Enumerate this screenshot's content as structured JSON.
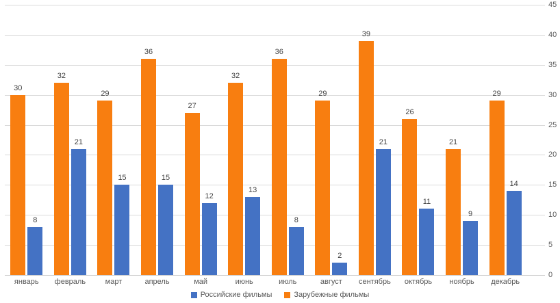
{
  "chart_data": {
    "type": "bar",
    "title": "",
    "categories": [
      "январь",
      "февраль",
      "март",
      "апрель",
      "май",
      "июнь",
      "июль",
      "август",
      "сентябрь",
      "октябрь",
      "ноябрь",
      "декабрь"
    ],
    "series": [
      {
        "name": "Российские фильмы",
        "color": "#4472C4",
        "values": [
          8,
          21,
          15,
          15,
          12,
          13,
          8,
          2,
          21,
          11,
          9,
          14
        ]
      },
      {
        "name": "Зарубежные фильмы",
        "color": "#F87E10",
        "values": [
          30,
          32,
          29,
          36,
          27,
          32,
          36,
          29,
          39,
          26,
          21,
          29
        ]
      }
    ],
    "bar_draw_order": [
      1,
      0
    ],
    "y_axis": {
      "position": "right",
      "min": 0,
      "max": 45,
      "step": 5,
      "ticks": [
        "0",
        "5",
        "10",
        "15",
        "20",
        "25",
        "30",
        "35",
        "40",
        "45"
      ]
    },
    "grid": true,
    "data_labels": true,
    "legend_position": "bottom",
    "colors": {
      "gridline": "#D9D9D9",
      "axis_line": "#C8C8C8",
      "data_label": "#404040",
      "tick_label": "#595959"
    }
  }
}
